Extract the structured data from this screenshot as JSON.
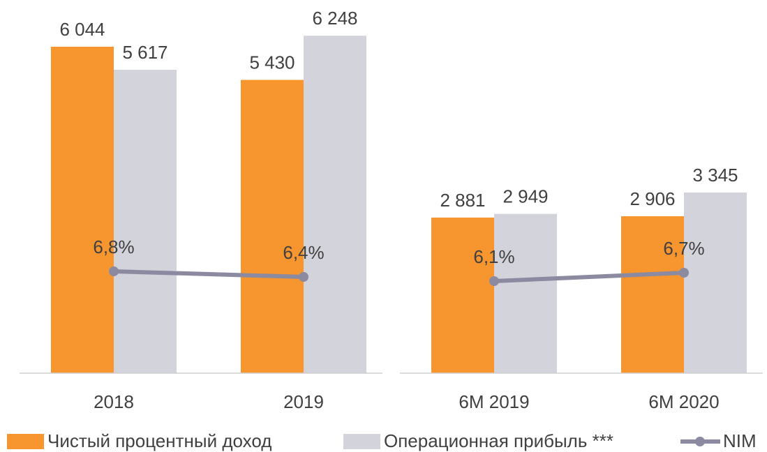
{
  "chart_data": [
    {
      "type": "bar",
      "categories": [
        "2018",
        "2019"
      ],
      "series": [
        {
          "name": "Чистый процентный доход",
          "color": "#f7962e",
          "values": [
            6044,
            5430
          ],
          "value_labels": [
            "6 044",
            "5 430"
          ]
        },
        {
          "name": "Операционная прибыль ***",
          "color": "#d3d3dc",
          "values": [
            5617,
            6248
          ],
          "value_labels": [
            "5 617",
            "6 248"
          ]
        },
        {
          "name": "NIM",
          "type": "line",
          "axis": "y2",
          "color": "#8c8aa0",
          "values": [
            6.8,
            6.4
          ],
          "value_labels": [
            "6,8%",
            "6,4%"
          ]
        }
      ],
      "ylim": [
        0,
        6780
      ],
      "y2lim": [
        -0.5,
        25.75
      ],
      "legend": "bottom"
    },
    {
      "type": "bar",
      "categories": [
        "6M 2019",
        "6M 2020"
      ],
      "series": [
        {
          "color": "#f7962e",
          "values": [
            2881,
            2906
          ],
          "value_labels": [
            "2 881",
            "2 906"
          ]
        },
        {
          "color": "#d3d3dc",
          "values": [
            2949,
            3345
          ],
          "value_labels": [
            "2 949",
            "3 345"
          ]
        },
        {
          "type": "line",
          "axis": "y2",
          "color": "#8c8aa0",
          "values": [
            6.1,
            6.7
          ],
          "value_labels": [
            "6,1%",
            "6,7%"
          ]
        }
      ],
      "ylim": [
        0,
        6780
      ],
      "y2lim": [
        -0.5,
        25.75
      ]
    }
  ]
}
